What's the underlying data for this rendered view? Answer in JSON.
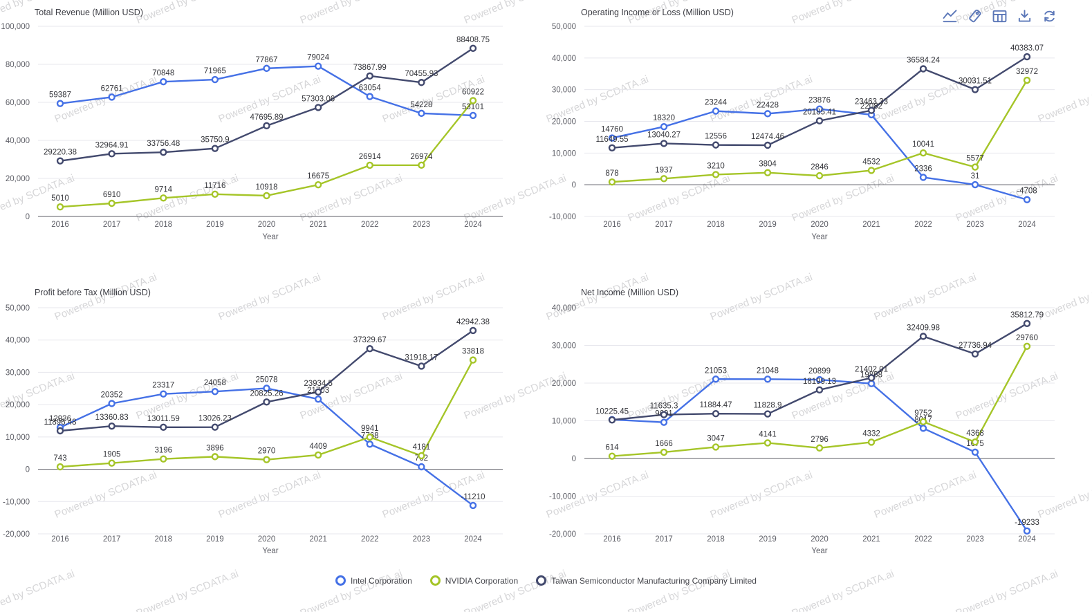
{
  "watermark": "Powered by SCDATA.ai",
  "colors": {
    "intel": "#4571e6",
    "nvidia": "#a5c528",
    "tsmc": "#434a6e",
    "grid": "#e7e7ed",
    "zero_line": "#5d5e66",
    "tick_text": "#5d5e66",
    "data_label": "#35363b",
    "title_text": "#3d3e45",
    "toolbar_icon": "#5b77b8",
    "watermark_text": "#d6d6d8"
  },
  "toolbar": {
    "icons": [
      "line-chart-icon",
      "tag-icon",
      "table-icon",
      "download-icon",
      "refresh-icon"
    ]
  },
  "legend": [
    {
      "label": "Intel Corporation",
      "color": "#4571e6"
    },
    {
      "label": "NVIDIA Corporation",
      "color": "#a5c528"
    },
    {
      "label": "Taiwan Semiconductor Manufacturing Company Limited",
      "color": "#434a6e"
    }
  ],
  "chart_data": [
    {
      "type": "line",
      "title": "Total Revenue (Million USD)",
      "xlabel": "Year",
      "categories": [
        "2016",
        "2017",
        "2018",
        "2019",
        "2020",
        "2021",
        "2022",
        "2023",
        "2024"
      ],
      "ylim": [
        0,
        100000
      ],
      "ytick_step": 20000,
      "grid": true,
      "legend_position": "bottom",
      "series": [
        {
          "name": "Intel Corporation",
          "color": "#4571e6",
          "values": [
            59387,
            62761,
            70848,
            71965,
            77867,
            79024,
            63054,
            54228,
            53101
          ]
        },
        {
          "name": "NVIDIA Corporation",
          "color": "#a5c528",
          "values": [
            5010,
            6910,
            9714,
            11716,
            10918,
            16675,
            26914,
            26974,
            60922
          ]
        },
        {
          "name": "Taiwan Semiconductor Manufacturing Company Limited",
          "color": "#434a6e",
          "values": [
            29220.38,
            32964.91,
            33756.48,
            35750.9,
            47695.89,
            57303.06,
            73867.99,
            70455.93,
            88408.75
          ]
        }
      ]
    },
    {
      "type": "line",
      "title": "Operating Income or Loss (Million USD)",
      "xlabel": "Year",
      "categories": [
        "2016",
        "2017",
        "2018",
        "2019",
        "2020",
        "2021",
        "2022",
        "2023",
        "2024"
      ],
      "ylim": [
        -10000,
        50000
      ],
      "ytick_step": 10000,
      "grid": true,
      "legend_position": "bottom",
      "series": [
        {
          "name": "Intel Corporation",
          "color": "#4571e6",
          "values": [
            14760,
            18320,
            23244,
            22428,
            23876,
            22082,
            2336,
            31,
            -4708
          ]
        },
        {
          "name": "NVIDIA Corporation",
          "color": "#a5c528",
          "values": [
            878,
            1937,
            3210,
            3804,
            2846,
            4532,
            10041,
            5577,
            32972
          ]
        },
        {
          "name": "Taiwan Semiconductor Manufacturing Company Limited",
          "color": "#434a6e",
          "values": [
            11649.55,
            13040.27,
            12556,
            12474.46,
            20185.41,
            23463.33,
            36584.24,
            30031.51,
            40383.07
          ]
        }
      ]
    },
    {
      "type": "line",
      "title": "Profit before Tax (Million USD)",
      "xlabel": "Year",
      "categories": [
        "2016",
        "2017",
        "2018",
        "2019",
        "2020",
        "2021",
        "2022",
        "2023",
        "2024"
      ],
      "ylim": [
        -20000,
        50000
      ],
      "ytick_step": 10000,
      "grid": true,
      "legend_position": "bottom",
      "series": [
        {
          "name": "Intel Corporation",
          "color": "#4571e6",
          "values": [
            12936,
            20352,
            23317,
            24058,
            25078,
            21703,
            7768,
            762,
            -11210
          ]
        },
        {
          "name": "NVIDIA Corporation",
          "color": "#a5c528",
          "values": [
            743,
            1905,
            3196,
            3896,
            2970,
            4409,
            9941,
            4181,
            33818
          ]
        },
        {
          "name": "Taiwan Semiconductor Manufacturing Company Limited",
          "color": "#434a6e",
          "values": [
            11896.48,
            13360.83,
            13011.59,
            13026.23,
            20825.26,
            23934.5,
            37329.67,
            31918.17,
            42942.38
          ]
        }
      ]
    },
    {
      "type": "line",
      "title": "Net Income (Million USD)",
      "xlabel": "Year",
      "categories": [
        "2016",
        "2017",
        "2018",
        "2019",
        "2020",
        "2021",
        "2022",
        "2023",
        "2024"
      ],
      "ylim": [
        -20000,
        40000
      ],
      "ytick_step": 10000,
      "grid": true,
      "legend_position": "bottom",
      "series": [
        {
          "name": "Intel Corporation",
          "color": "#4571e6",
          "values": [
            10316,
            9601,
            21053,
            21048,
            20899,
            19868,
            8017,
            1675,
            -19233
          ],
          "hidden_label_indices": [
            0
          ]
        },
        {
          "name": "NVIDIA Corporation",
          "color": "#a5c528",
          "values": [
            614,
            1666,
            3047,
            4141,
            2796,
            4332,
            9752,
            4368,
            29760
          ]
        },
        {
          "name": "Taiwan Semiconductor Manufacturing Company Limited",
          "color": "#434a6e",
          "values": [
            10225.45,
            11635.3,
            11884.47,
            11828.9,
            18199.13,
            21402.01,
            32409.98,
            27736.94,
            35812.79
          ]
        }
      ]
    }
  ]
}
